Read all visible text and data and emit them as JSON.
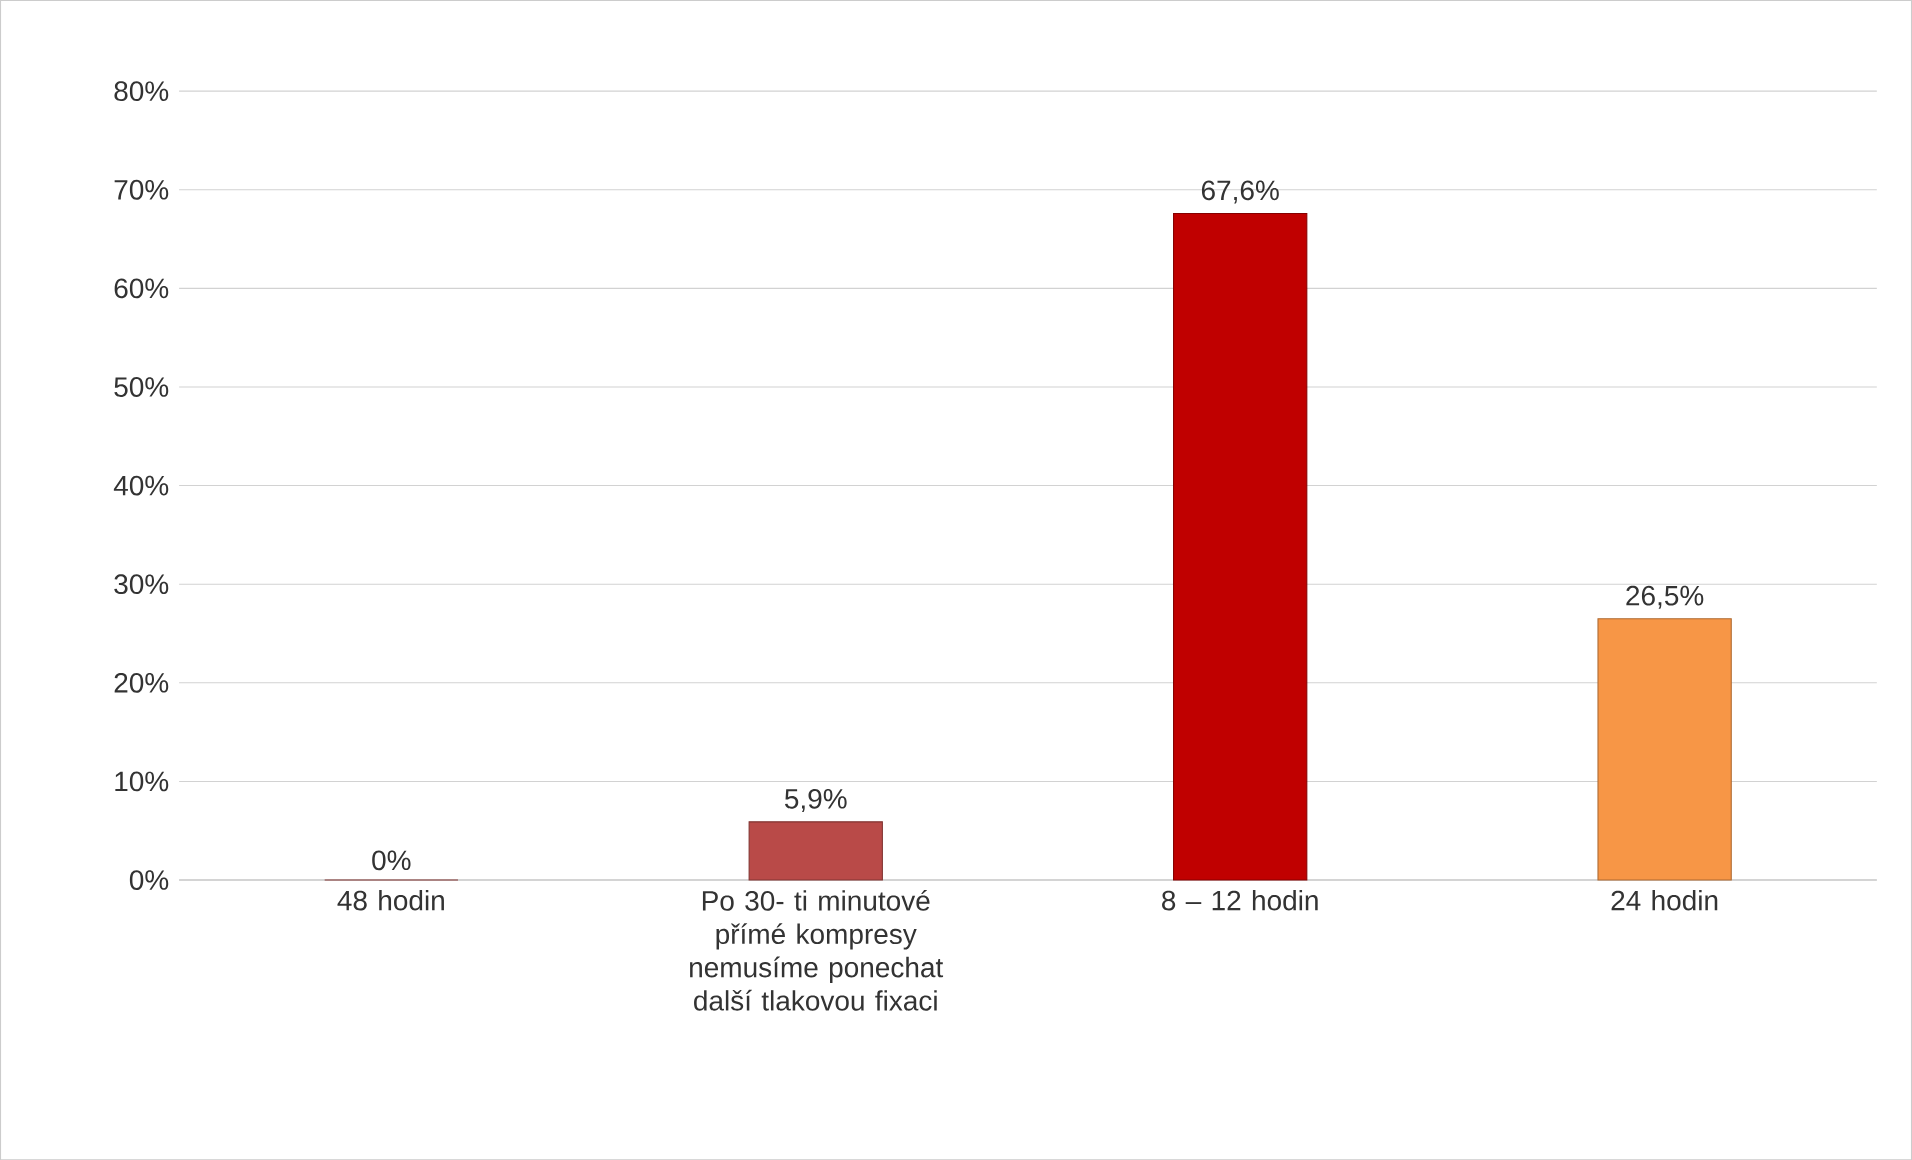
{
  "chart_data": {
    "type": "bar",
    "categories": [
      "48 hodin",
      "Po 30- ti minutové přímé kompresy nemusíme ponechat další tlakovou fixaci",
      "8 – 12 hodin",
      "24 hodin"
    ],
    "values": [
      0,
      5.9,
      67.6,
      26.5
    ],
    "colors": [
      "#b94a48",
      "#b94a48",
      "#c00000",
      "#f79646"
    ],
    "value_labels": [
      "0%",
      "5,9%",
      "67,6%",
      "26,5%"
    ],
    "ylim": [
      0,
      80
    ],
    "yticks": [
      {
        "value": 0,
        "label": "0%"
      },
      {
        "value": 10,
        "label": "10%"
      },
      {
        "value": 20,
        "label": "20%"
      },
      {
        "value": 30,
        "label": "30%"
      },
      {
        "value": 40,
        "label": "40%"
      },
      {
        "value": 50,
        "label": "50%"
      },
      {
        "value": 60,
        "label": "60%"
      },
      {
        "value": 70,
        "label": "70%"
      },
      {
        "value": 80,
        "label": "80%"
      }
    ],
    "grid": "y"
  }
}
